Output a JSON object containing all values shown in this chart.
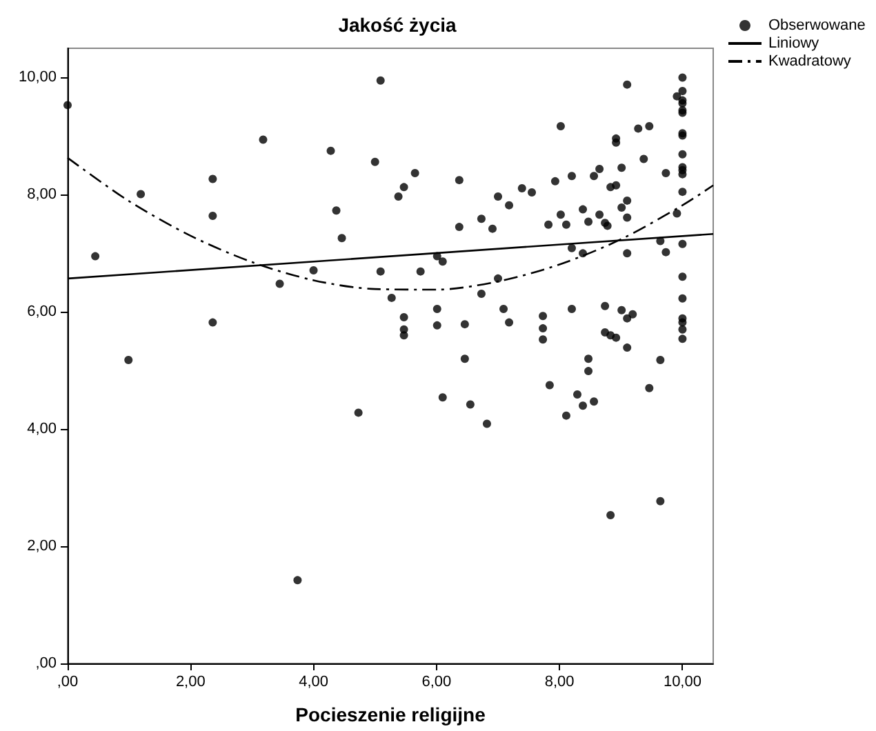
{
  "chart_data": {
    "type": "scatter",
    "title": "Jakość życia",
    "xlabel": "Pocieszenie religijne",
    "xlim": [
      0,
      10.5
    ],
    "ylim": [
      0,
      10.5
    ],
    "xticks": [
      {
        "value": 0,
        "label": ",00"
      },
      {
        "value": 2,
        "label": "2,00"
      },
      {
        "value": 4,
        "label": "4,00"
      },
      {
        "value": 6,
        "label": "6,00"
      },
      {
        "value": 8,
        "label": "8,00"
      },
      {
        "value": 10,
        "label": "10,00"
      }
    ],
    "yticks": [
      {
        "value": 0,
        "label": ",00"
      },
      {
        "value": 2,
        "label": "2,00"
      },
      {
        "value": 4,
        "label": "4,00"
      },
      {
        "value": 6,
        "label": "6,00"
      },
      {
        "value": 8,
        "label": "8,00"
      },
      {
        "value": 10,
        "label": "10,00"
      }
    ],
    "grid": false,
    "legend": "top right",
    "series": [
      {
        "name": "Obserwowane",
        "marker": "circle",
        "color": "#000000",
        "x": [
          0,
          0.45,
          1.19,
          2.36,
          2.36,
          2.36,
          3.18,
          3.45,
          4.0,
          4.28,
          4.37,
          4.46,
          5.0,
          5.09,
          5.09,
          0.99,
          3.74,
          4.73,
          5.65,
          5.47,
          5.38,
          5.27,
          5.47,
          5.47,
          5.47,
          5.74,
          6.01,
          6.1,
          6.01,
          6.01,
          6.37,
          6.37,
          6.46,
          6.73,
          6.91,
          6.73,
          7.0,
          7.0,
          7.18,
          7.39,
          7.55,
          7.09,
          7.18,
          7.73,
          7.73,
          7.73,
          7.82,
          7.93,
          8.02,
          8.02,
          8.11,
          8.2,
          8.2,
          8.2,
          8.38,
          8.38,
          8.47,
          8.56,
          8.65,
          8.65,
          8.74,
          8.78,
          8.83,
          8.92,
          8.92,
          8.92,
          9.01,
          9.01,
          9.1,
          9.1,
          9.1,
          9.28,
          9.46,
          9.37,
          9.73,
          9.64,
          9.73,
          9.1,
          8.74,
          9.01,
          9.1,
          9.19,
          8.74,
          8.83,
          8.92,
          9.1,
          9.91,
          10,
          10,
          9.91,
          10,
          10,
          10,
          10,
          10,
          10,
          10,
          10,
          10,
          10,
          10,
          10,
          10,
          10,
          10,
          10,
          10,
          10,
          6.46,
          6.1,
          6.55,
          6.82,
          7.84,
          8.11,
          8.29,
          8.38,
          8.56,
          8.47,
          8.47,
          9.64,
          9.46,
          8.83,
          9.64
        ],
        "values": [
          9.53,
          6.95,
          8.01,
          8.27,
          7.64,
          5.82,
          8.94,
          6.48,
          6.71,
          8.75,
          7.73,
          7.26,
          8.56,
          9.95,
          6.69,
          5.18,
          1.42,
          4.28,
          8.37,
          8.13,
          7.97,
          6.24,
          5.91,
          5.7,
          5.6,
          6.69,
          6.95,
          6.86,
          6.05,
          5.77,
          8.25,
          7.45,
          5.79,
          7.59,
          7.42,
          6.31,
          6.57,
          7.97,
          7.82,
          8.11,
          8.04,
          6.05,
          5.82,
          5.93,
          5.72,
          5.53,
          7.49,
          8.23,
          9.17,
          7.66,
          7.49,
          8.32,
          7.09,
          6.05,
          7.75,
          7.0,
          7.54,
          8.32,
          8.44,
          7.66,
          7.52,
          7.47,
          8.13,
          8.16,
          8.96,
          8.89,
          8.46,
          7.78,
          7.9,
          7.61,
          9.88,
          9.13,
          9.17,
          8.61,
          8.37,
          7.21,
          7.02,
          7.0,
          6.1,
          6.03,
          5.89,
          5.96,
          5.65,
          5.6,
          5.56,
          5.39,
          7.68,
          10.0,
          9.77,
          9.68,
          9.61,
          9.56,
          9.44,
          9.4,
          9.05,
          9.01,
          8.69,
          8.47,
          8.42,
          8.35,
          8.05,
          7.16,
          6.6,
          6.23,
          5.89,
          5.82,
          5.7,
          5.54,
          5.2,
          4.54,
          4.42,
          4.09,
          4.75,
          4.23,
          4.59,
          4.4,
          4.47,
          5.2,
          4.99,
          5.18,
          4.7,
          2.53,
          2.77
        ]
      },
      {
        "name": "Liniowy",
        "type": "line",
        "marker": "none",
        "line_style": "solid",
        "color": "#000000",
        "x": [
          0,
          10.5
        ],
        "values": [
          6.57,
          7.33
        ]
      },
      {
        "name": "Kwadratowy",
        "type": "line",
        "marker": "none",
        "line_style": "dashed",
        "color": "#000000",
        "x": [
          0,
          1,
          2,
          3,
          4,
          5,
          6,
          7,
          8,
          9,
          10,
          10.5
        ],
        "values": [
          8.63,
          7.89,
          7.3,
          6.85,
          6.54,
          6.39,
          6.38,
          6.52,
          6.81,
          7.24,
          7.82,
          8.16
        ]
      }
    ]
  }
}
